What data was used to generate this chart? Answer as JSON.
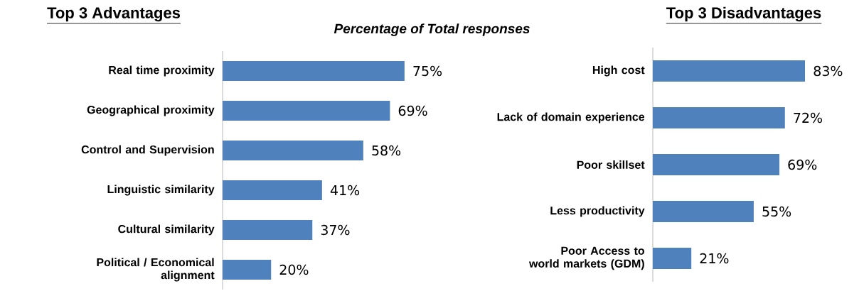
{
  "chart_data": [
    {
      "type": "bar",
      "orientation": "horizontal",
      "title": "Top 3 Advantages",
      "annotations": [
        "Percentage of Total responses"
      ],
      "categories": [
        "Real time proximity",
        "Geographical proximity",
        "Control and Supervision",
        "Linguistic similarity",
        "Cultural similarity",
        "Political / Economical alignment"
      ],
      "values": [
        75,
        69,
        58,
        41,
        37,
        20
      ],
      "color": "#4f81bd",
      "value_labels": [
        "75%",
        "69%",
        "58%",
        "41%",
        "37%",
        "20%"
      ]
    },
    {
      "type": "bar",
      "orientation": "horizontal",
      "title": "Top 3 Disadvantages",
      "categories": [
        "High cost",
        "Lack of domain experience",
        "Poor skillset",
        "Less productivity",
        "Poor Access to world markets (GDM)"
      ],
      "values": [
        83,
        72,
        69,
        55,
        21
      ],
      "color": "#4f81bd",
      "value_labels": [
        "83%",
        "72%",
        "69%",
        "55%",
        "21%"
      ]
    }
  ]
}
